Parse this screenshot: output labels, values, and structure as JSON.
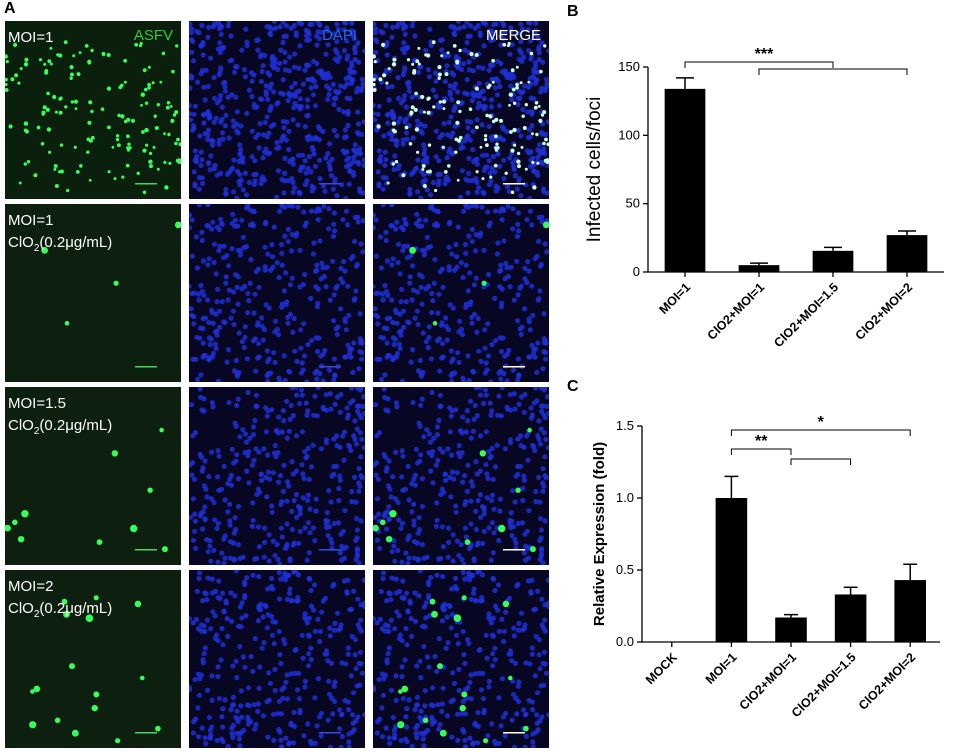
{
  "panels": {
    "a_label": "A",
    "b_label": "B",
    "c_label": "C"
  },
  "micrographs": {
    "channels": [
      "ASFV",
      "DAPI",
      "MERGE"
    ],
    "channel_colors": [
      "#2ecc40",
      "#1e6bff",
      "#ffffff"
    ],
    "rows": [
      {
        "line1": "MOI=1",
        "line2": ""
      },
      {
        "line1": "MOI=1",
        "line2": "ClO2(0.2μg/mL)"
      },
      {
        "line1": "MOI=1.5",
        "line2": "ClO2(0.2μg/mL)"
      },
      {
        "line1": "MOI=2",
        "line2": "ClO2(0.2μg/mL)"
      }
    ]
  },
  "chart_data": [
    {
      "type": "bar",
      "panel": "B",
      "categories": [
        "MOI=1",
        "ClO2+MOI=1",
        "ClO2+MOI=1.5",
        "ClO2+MOI=2"
      ],
      "values": [
        134,
        5,
        15.5,
        27
      ],
      "errors": [
        8,
        1.5,
        2.5,
        3
      ],
      "ylabel": "Infected cells/foci",
      "ylim": [
        0,
        150
      ],
      "yticks": [
        0,
        50,
        100,
        150
      ],
      "significance": [
        {
          "label": "***",
          "from": 0,
          "to": 2
        },
        {
          "from": 1,
          "to": 3
        }
      ],
      "bar_color": "#000000"
    },
    {
      "type": "bar",
      "panel": "C",
      "categories": [
        "MOCK",
        "MOI=1",
        "ClO2+MOI=1",
        "ClO2+MOI=1.5",
        "ClO2+MOI=2"
      ],
      "values": [
        0,
        1.0,
        0.17,
        0.33,
        0.43
      ],
      "errors": [
        0,
        0.15,
        0.02,
        0.05,
        0.11
      ],
      "ylabel": "Relative Expression (fold)",
      "ylim": [
        0,
        1.5
      ],
      "yticks": [
        0.0,
        0.5,
        1.0,
        1.5
      ],
      "yticklabels": [
        "0.0",
        "0.5",
        "1.0",
        "1.5"
      ],
      "significance": [
        {
          "label": "*",
          "from": 1,
          "to": 4
        },
        {
          "label": "**",
          "from": 1,
          "to": 2
        },
        {
          "from": 2,
          "to": 3
        }
      ],
      "bar_color": "#000000"
    }
  ]
}
